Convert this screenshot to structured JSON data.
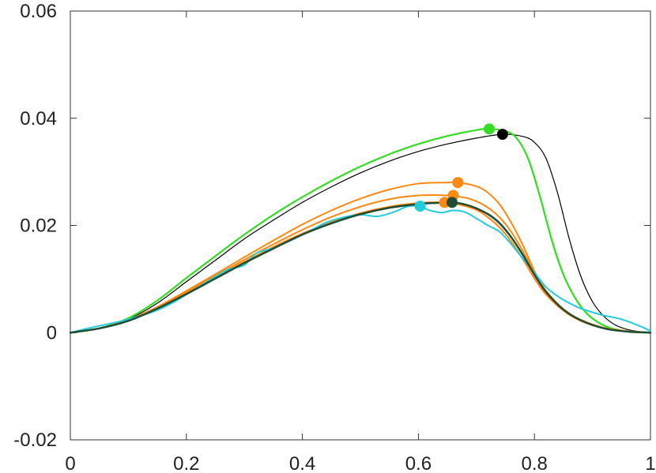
{
  "chart_data": {
    "type": "line",
    "title": "",
    "xlabel": "",
    "ylabel": "",
    "xlim": [
      0,
      1
    ],
    "ylim": [
      -0.02,
      0.06
    ],
    "grid": false,
    "legend": "none",
    "x_ticks": [
      {
        "value": 0,
        "label": "0"
      },
      {
        "value": 0.2,
        "label": "0.2"
      },
      {
        "value": 0.4,
        "label": "0.4"
      },
      {
        "value": 0.6,
        "label": "0.6"
      },
      {
        "value": 0.8,
        "label": "0.8"
      },
      {
        "value": 1,
        "label": "1"
      }
    ],
    "y_ticks": [
      {
        "value": -0.02,
        "label": "-0.02"
      },
      {
        "value": 0,
        "label": "0"
      },
      {
        "value": 0.02,
        "label": "0.02"
      },
      {
        "value": 0.04,
        "label": "0.04"
      },
      {
        "value": 0.06,
        "label": "0.06"
      }
    ],
    "series": [
      {
        "color": "#000000",
        "width": 1.2,
        "x": [
          0,
          0.05,
          0.1,
          0.15,
          0.2,
          0.25,
          0.3,
          0.35,
          0.4,
          0.45,
          0.5,
          0.55,
          0.6,
          0.65,
          0.7,
          0.745,
          0.78,
          0.8,
          0.82,
          0.84,
          0.86,
          0.88,
          0.9,
          0.92,
          0.94,
          0.96,
          0.98,
          1.0
        ],
        "y": [
          0,
          0.0008,
          0.0025,
          0.0055,
          0.0095,
          0.0135,
          0.0175,
          0.021,
          0.0243,
          0.0272,
          0.0298,
          0.032,
          0.0338,
          0.0352,
          0.0363,
          0.037,
          0.0366,
          0.0355,
          0.0325,
          0.026,
          0.0175,
          0.0105,
          0.0058,
          0.003,
          0.0014,
          0.0006,
          0.0002,
          0
        ],
        "marker": {
          "x": 0.745,
          "y": 0.037
        }
      },
      {
        "color": "#33dd22",
        "width": 2.2,
        "x": [
          0,
          0.05,
          0.1,
          0.15,
          0.2,
          0.25,
          0.3,
          0.35,
          0.4,
          0.45,
          0.5,
          0.55,
          0.6,
          0.65,
          0.7,
          0.722,
          0.75,
          0.77,
          0.79,
          0.81,
          0.83,
          0.85,
          0.87,
          0.89,
          0.91,
          0.93,
          0.95,
          0.97,
          1.0
        ],
        "y": [
          0,
          0.0008,
          0.0027,
          0.006,
          0.0102,
          0.0143,
          0.0183,
          0.022,
          0.0253,
          0.0283,
          0.031,
          0.0333,
          0.0352,
          0.0367,
          0.0378,
          0.038,
          0.0376,
          0.0362,
          0.0322,
          0.0252,
          0.0172,
          0.0108,
          0.0065,
          0.0036,
          0.0019,
          0.0009,
          0.0004,
          0.0001,
          0
        ],
        "marker": {
          "x": 0.722,
          "y": 0.038
        }
      },
      {
        "color": "#ff8811",
        "width": 2,
        "x": [
          0,
          0.05,
          0.1,
          0.15,
          0.2,
          0.25,
          0.3,
          0.35,
          0.4,
          0.45,
          0.5,
          0.55,
          0.6,
          0.65,
          0.67,
          0.7,
          0.72,
          0.74,
          0.76,
          0.78,
          0.8,
          0.82,
          0.85,
          0.88,
          0.92,
          0.96,
          1.0
        ],
        "y": [
          0,
          0.0008,
          0.0024,
          0.0048,
          0.0078,
          0.0109,
          0.0141,
          0.0172,
          0.0202,
          0.0228,
          0.025,
          0.0267,
          0.0278,
          0.028,
          0.028,
          0.0273,
          0.0261,
          0.0239,
          0.0205,
          0.0163,
          0.0115,
          0.0078,
          0.0042,
          0.0022,
          0.0008,
          0.0002,
          0
        ],
        "marker": {
          "x": 0.668,
          "y": 0.028
        }
      },
      {
        "color": "#ff8811",
        "width": 2,
        "x": [
          0,
          0.05,
          0.1,
          0.15,
          0.2,
          0.25,
          0.3,
          0.35,
          0.4,
          0.45,
          0.5,
          0.55,
          0.6,
          0.65,
          0.68,
          0.7,
          0.72,
          0.74,
          0.76,
          0.78,
          0.8,
          0.82,
          0.85,
          0.88,
          0.92,
          0.96,
          1.0
        ],
        "y": [
          0,
          0.0008,
          0.0023,
          0.0047,
          0.0076,
          0.0106,
          0.0136,
          0.0165,
          0.0192,
          0.0216,
          0.0235,
          0.0249,
          0.0256,
          0.0256,
          0.0252,
          0.0245,
          0.0233,
          0.0215,
          0.0188,
          0.0152,
          0.0112,
          0.0078,
          0.0044,
          0.0024,
          0.0009,
          0.0003,
          0
        ],
        "marker": {
          "x": 0.66,
          "y": 0.0256
        }
      },
      {
        "color": "#ff8811",
        "width": 2,
        "x": [
          0,
          0.05,
          0.1,
          0.15,
          0.2,
          0.25,
          0.3,
          0.35,
          0.4,
          0.45,
          0.5,
          0.55,
          0.6,
          0.64,
          0.67,
          0.7,
          0.72,
          0.74,
          0.76,
          0.78,
          0.8,
          0.82,
          0.85,
          0.88,
          0.92,
          0.96,
          1.0
        ],
        "y": [
          0,
          0.0008,
          0.0023,
          0.0046,
          0.0074,
          0.0103,
          0.0132,
          0.016,
          0.0185,
          0.0206,
          0.0223,
          0.0235,
          0.0242,
          0.0243,
          0.0239,
          0.0229,
          0.0215,
          0.0196,
          0.017,
          0.0137,
          0.0101,
          0.0071,
          0.0041,
          0.0022,
          0.0008,
          0.0002,
          0
        ],
        "marker": {
          "x": 0.645,
          "y": 0.0243
        }
      },
      {
        "color": "#22ccdd",
        "width": 2,
        "x": [
          0,
          0.03,
          0.06,
          0.09,
          0.12,
          0.15,
          0.18,
          0.21,
          0.24,
          0.27,
          0.3,
          0.32,
          0.35,
          0.38,
          0.41,
          0.44,
          0.47,
          0.5,
          0.53,
          0.56,
          0.58,
          0.6,
          0.62,
          0.64,
          0.66,
          0.68,
          0.7,
          0.72,
          0.74,
          0.76,
          0.78,
          0.8,
          0.82,
          0.84,
          0.86,
          0.88,
          0.9,
          0.92,
          0.95,
          0.98,
          1.0
        ],
        "y": [
          0,
          0.0008,
          0.0015,
          0.0022,
          0.0031,
          0.0042,
          0.0058,
          0.0078,
          0.0098,
          0.0117,
          0.0126,
          0.0148,
          0.0158,
          0.0172,
          0.0188,
          0.0205,
          0.0215,
          0.022,
          0.0217,
          0.0226,
          0.0235,
          0.0236,
          0.0228,
          0.0224,
          0.0228,
          0.0225,
          0.0213,
          0.02,
          0.0188,
          0.0165,
          0.0138,
          0.0112,
          0.0085,
          0.0068,
          0.0055,
          0.0045,
          0.0038,
          0.0032,
          0.0025,
          0.0013,
          0.0003
        ],
        "marker": {
          "x": 0.603,
          "y": 0.0236
        }
      },
      {
        "color": "#1e4d36",
        "width": 2.5,
        "x": [
          0,
          0.05,
          0.1,
          0.15,
          0.2,
          0.25,
          0.3,
          0.35,
          0.4,
          0.45,
          0.5,
          0.55,
          0.6,
          0.63,
          0.66,
          0.69,
          0.72,
          0.74,
          0.76,
          0.78,
          0.8,
          0.82,
          0.85,
          0.88,
          0.92,
          0.96,
          1.0
        ],
        "y": [
          0,
          0.0008,
          0.0022,
          0.0045,
          0.0072,
          0.0101,
          0.013,
          0.0157,
          0.0183,
          0.0204,
          0.0221,
          0.0233,
          0.024,
          0.0242,
          0.0243,
          0.0236,
          0.0221,
          0.0204,
          0.0178,
          0.0145,
          0.0108,
          0.0076,
          0.0043,
          0.0023,
          0.0008,
          0.0002,
          0
        ],
        "marker": {
          "x": 0.658,
          "y": 0.0243
        }
      }
    ]
  }
}
